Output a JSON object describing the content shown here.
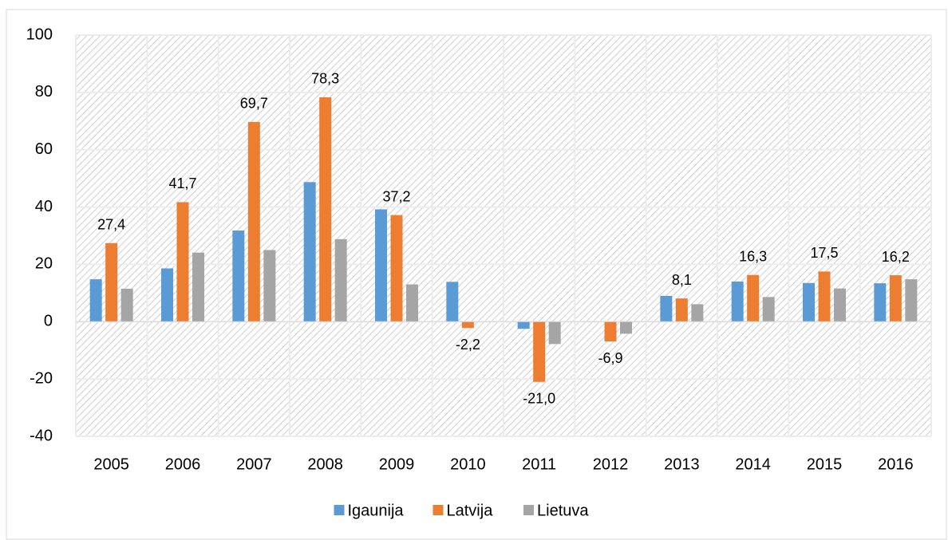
{
  "chart_data": {
    "type": "bar",
    "categories": [
      "2005",
      "2006",
      "2007",
      "2008",
      "2009",
      "2010",
      "2011",
      "2012",
      "2013",
      "2014",
      "2015",
      "2016"
    ],
    "series": [
      {
        "name": "Igaunija",
        "color": "#5b9bd5",
        "values": [
          14.8,
          18.6,
          31.8,
          48.7,
          39.2,
          13.9,
          -2.5,
          0,
          9.0,
          14.0,
          13.5,
          13.4
        ]
      },
      {
        "name": "Latvija",
        "color": "#ed7d31",
        "values": [
          27.4,
          41.7,
          69.7,
          78.3,
          37.2,
          -2.2,
          -21.0,
          -6.9,
          8.1,
          16.3,
          17.5,
          16.2
        ],
        "value_labels": [
          "27,4",
          "41,7",
          "69,7",
          "78,3",
          "37,2",
          "-2,2",
          "-21,0",
          "-6,9",
          "8,1",
          "16,3",
          "17,5",
          "16,2"
        ]
      },
      {
        "name": "Lietuva",
        "color": "#a5a5a5",
        "values": [
          11.5,
          24.1,
          25.0,
          28.8,
          13.0,
          0,
          -7.8,
          -4.2,
          6.1,
          8.6,
          11.6,
          14.8
        ]
      }
    ],
    "ylim": [
      -40,
      100
    ],
    "yticks": [
      -40,
      -20,
      0,
      20,
      40,
      60,
      80,
      100
    ],
    "grid": true,
    "legend": "bottom"
  }
}
